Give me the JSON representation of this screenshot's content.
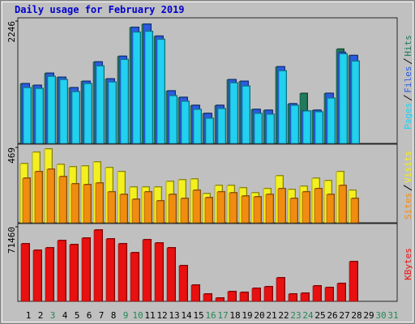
{
  "chart_data": [
    {
      "type": "bar",
      "title": "Daily usage for February 2019",
      "ylim": [
        0,
        2246
      ],
      "yticks": [
        2246
      ],
      "series": [
        {
          "name": "Hits",
          "color": "#217a5c",
          "values": [
            1094,
            1064,
            1286,
            1212,
            1020,
            1138,
            1493,
            1182,
            1596,
            2128,
            2187,
            1966,
            961,
            842,
            695,
            547,
            695,
            1168,
            1138,
            621,
            606,
            1404,
            724,
            916,
            606,
            916,
            1729,
            1611,
            null,
            null,
            null
          ]
        },
        {
          "name": "Files",
          "color": "#2b5ce0",
          "values": [
            1094,
            1064,
            1286,
            1212,
            1020,
            1138,
            1493,
            1182,
            1596,
            2128,
            2187,
            1966,
            961,
            842,
            695,
            547,
            695,
            1168,
            1138,
            621,
            606,
            1404,
            724,
            591,
            606,
            916,
            1670,
            1611,
            null,
            null,
            null
          ]
        },
        {
          "name": "Pages",
          "color": "#22d0f0",
          "values": [
            1020,
            1005,
            1227,
            1168,
            946,
            1094,
            1419,
            1123,
            1537,
            2040,
            2054,
            1907,
            872,
            769,
            621,
            458,
            636,
            1108,
            1049,
            547,
            532,
            1330,
            695,
            591,
            576,
            828,
            1641,
            1508,
            null,
            null,
            null
          ]
        }
      ]
    },
    {
      "type": "bar",
      "ylim": [
        0,
        469
      ],
      "yticks": [
        469
      ],
      "series": [
        {
          "name": "Visits",
          "color": "#f4f020",
          "values": [
            368,
            439,
            459,
            363,
            348,
            353,
            378,
            343,
            318,
            222,
            222,
            222,
            257,
            267,
            272,
            181,
            232,
            232,
            217,
            186,
            212,
            292,
            207,
            227,
            277,
            262,
            318,
            202,
            null,
            null,
            null
          ]
        },
        {
          "name": "Sites",
          "color": "#f08c10",
          "values": [
            277,
            318,
            333,
            287,
            242,
            237,
            247,
            192,
            176,
            146,
            192,
            136,
            176,
            151,
            202,
            156,
            192,
            186,
            166,
            161,
            176,
            212,
            151,
            192,
            212,
            176,
            232,
            151,
            null,
            null,
            null
          ]
        }
      ]
    },
    {
      "type": "bar",
      "ylim": [
        0,
        71460
      ],
      "yticks": [
        71460
      ],
      "categories": [
        "1",
        "2",
        "3",
        "4",
        "5",
        "6",
        "7",
        "8",
        "9",
        "10",
        "11",
        "12",
        "13",
        "14",
        "15",
        "16",
        "17",
        "18",
        "19",
        "20",
        "21",
        "22",
        "23",
        "24",
        "25",
        "26",
        "27",
        "28",
        "29",
        "30",
        "31"
      ],
      "highlight_indexes": [
        2,
        8,
        9,
        15,
        16,
        22,
        23,
        29,
        30
      ],
      "label_color": "#000000",
      "highlight_color": "#228855",
      "series": [
        {
          "name": "KBytes",
          "color": "#e81010",
          "values": [
            55146,
            48932,
            51262,
            58253,
            54369,
            60583,
            68350,
            59806,
            55146,
            46602,
            59029,
            55922,
            51262,
            34175,
            15534,
            6990,
            3107,
            9320,
            8544,
            12427,
            13981,
            22524,
            6990,
            7767,
            14757,
            13204,
            17087,
            38058,
            null,
            null,
            null
          ]
        }
      ]
    }
  ]
}
